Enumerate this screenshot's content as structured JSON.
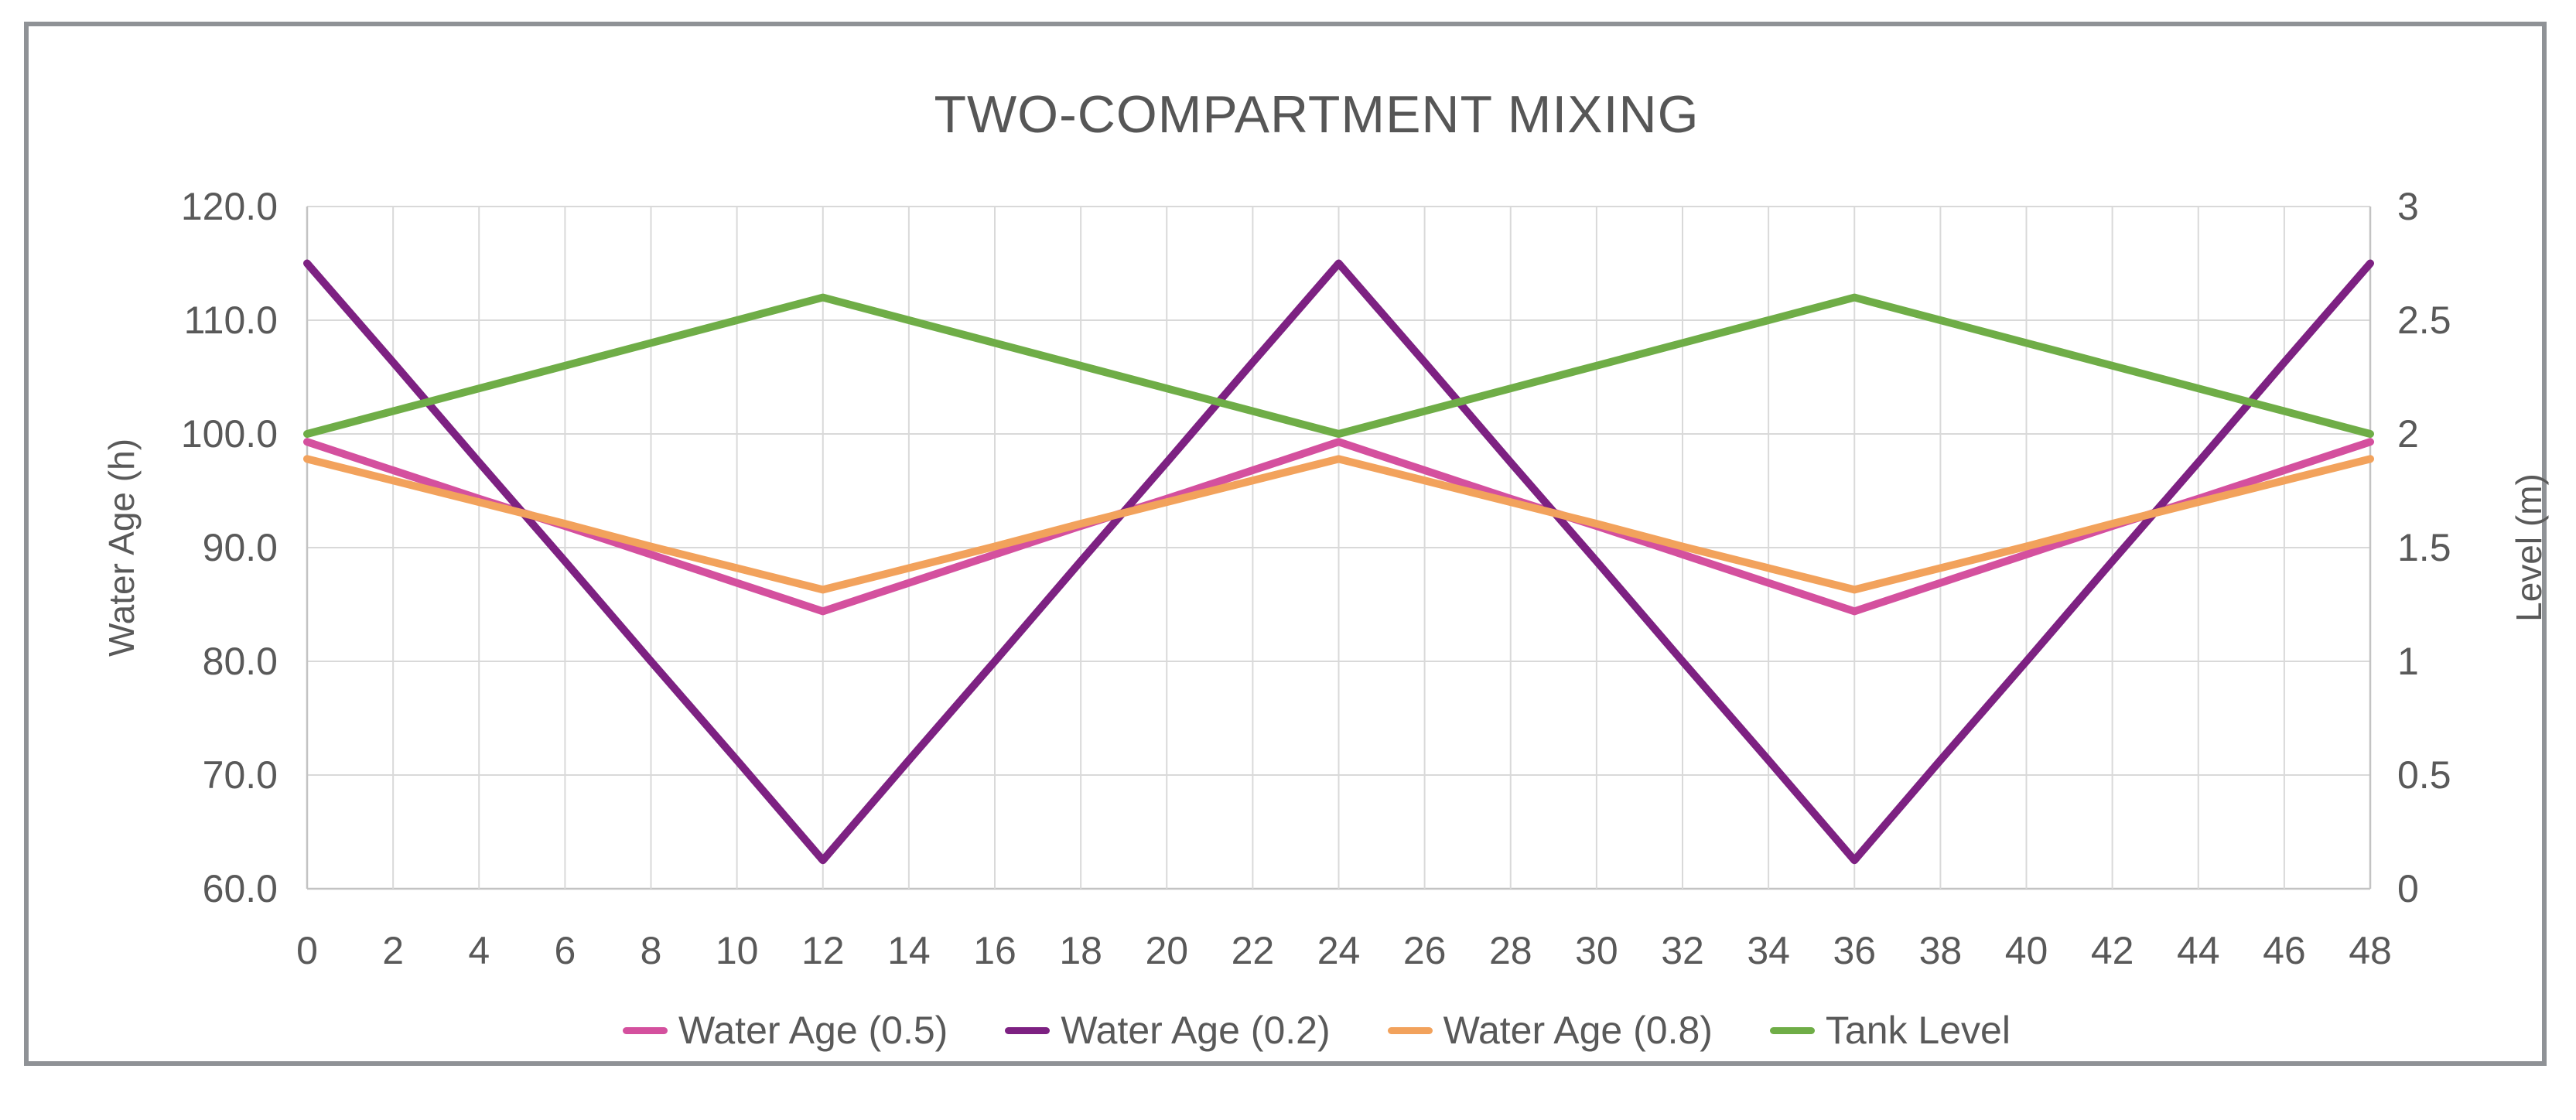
{
  "chart_data": {
    "type": "line",
    "title": "TWO-COMPARTMENT MIXING",
    "legend_position": "bottom",
    "grid": true,
    "x": [
      0,
      2,
      4,
      6,
      8,
      10,
      12,
      14,
      16,
      18,
      20,
      22,
      24,
      26,
      28,
      30,
      32,
      34,
      36,
      38,
      40,
      42,
      44,
      46,
      48
    ],
    "x_tick_labels": [
      "0",
      "2",
      "4",
      "6",
      "8",
      "10",
      "12",
      "14",
      "16",
      "18",
      "20",
      "22",
      "24",
      "26",
      "28",
      "30",
      "32",
      "34",
      "36",
      "38",
      "40",
      "42",
      "44",
      "46",
      "48"
    ],
    "left_axis": {
      "label": "Water Age (h)",
      "min": 60,
      "max": 120,
      "tick_values": [
        60,
        70,
        80,
        90,
        100,
        110,
        120
      ],
      "tick_labels": [
        "60.0",
        "70.0",
        "80.0",
        "90.0",
        "100.0",
        "110.0",
        "120.0"
      ]
    },
    "right_axis": {
      "label": "Level (m)",
      "min": 0,
      "max": 3,
      "tick_values": [
        0,
        0.5,
        1,
        1.5,
        2,
        2.5,
        3
      ],
      "tick_labels": [
        "0",
        "0.5",
        "1",
        "1.5",
        "2",
        "2.5",
        "3"
      ]
    },
    "series": [
      {
        "name": "Water Age (0.5)",
        "axis": "left",
        "color": "#d4509e",
        "values": [
          99.3,
          96.8,
          94.3,
          91.9,
          89.4,
          86.9,
          84.4,
          86.9,
          89.4,
          91.9,
          94.3,
          96.8,
          99.3,
          96.8,
          94.3,
          91.9,
          89.4,
          86.9,
          84.4,
          86.9,
          89.4,
          91.9,
          94.3,
          96.8,
          99.3
        ]
      },
      {
        "name": "Water Age (0.2)",
        "axis": "left",
        "color": "#7d2182",
        "values": [
          115,
          106.3,
          97.5,
          88.8,
          80,
          71.3,
          62.5,
          71.3,
          80,
          88.8,
          97.5,
          106.3,
          115,
          106.3,
          97.5,
          88.8,
          80,
          71.3,
          62.5,
          71.3,
          80,
          88.8,
          97.5,
          106.3,
          115
        ]
      },
      {
        "name": "Water Age (0.8)",
        "axis": "left",
        "color": "#f2a25c",
        "values": [
          97.8,
          95.9,
          94,
          92.1,
          90.1,
          88.2,
          86.3,
          88.2,
          90.1,
          92.1,
          94,
          95.9,
          97.8,
          95.9,
          94,
          92.1,
          90.1,
          88.2,
          86.3,
          88.2,
          90.1,
          92.1,
          94,
          95.9,
          97.8
        ]
      },
      {
        "name": "Tank Level",
        "axis": "right",
        "color": "#6fad47",
        "values": [
          2,
          2.1,
          2.2,
          2.3,
          2.4,
          2.5,
          2.6,
          2.5,
          2.4,
          2.3,
          2.2,
          2.1,
          2,
          2.1,
          2.2,
          2.3,
          2.4,
          2.5,
          2.6,
          2.5,
          2.4,
          2.3,
          2.2,
          2.1,
          2
        ]
      }
    ],
    "style": {
      "text_color": "#595959",
      "title_color": "#565656",
      "gridline_color": "#d9d9d9",
      "axis_line_color": "#c3c3c3",
      "frame_border_color": "#8f9296",
      "background_color": "#ffffff"
    }
  }
}
